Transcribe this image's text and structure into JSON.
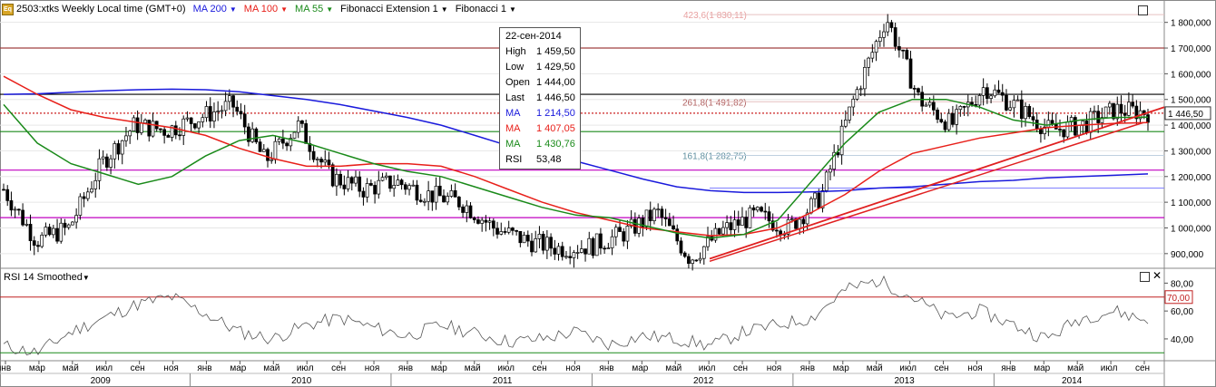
{
  "toolbar": {
    "symbol": "2503:xtks Weekly Local time (GMT+0)",
    "ma200": "MA 200",
    "ma100": "MA 100",
    "ma55": "MA 55",
    "fibext": "Fibonacci Extension 1",
    "fib": "Fibonacci 1",
    "eq_icon": "Eq"
  },
  "colors": {
    "ma200": "#1a1adc",
    "ma100": "#e8201a",
    "ma55": "#1a8a1a",
    "fib_ext": "#cc2222",
    "magenta": "#c000c0",
    "brown": "#a04040"
  },
  "tooltip": {
    "date": "22-сен-2014",
    "high_k": "High",
    "high": "1 459,50",
    "low_k": "Low",
    "low": "1 429,50",
    "open_k": "Open",
    "open": "1 444,00",
    "last_k": "Last",
    "last": "1 446,50",
    "ma1_k": "MA",
    "ma1": "1 214,50",
    "ma2_k": "MA",
    "ma2": "1 407,05",
    "ma3_k": "MA",
    "ma3": "1 430,76",
    "rsi_k": "RSI",
    "rsi": "53,48"
  },
  "fib_labels": {
    "f423": "423,6(1 830,11)",
    "f261": "261,8(1 491,82)",
    "f161": "161,8(1 282,75)"
  },
  "rsi": {
    "title": "RSI 14 Smoothed",
    "level70": "70,00",
    "ticks": [
      "80,00",
      "60,00",
      "40,00"
    ]
  },
  "chart_data": {
    "type": "candlestick",
    "y_ticks": [
      "1 800,000",
      "1 700,000",
      "1 600,000",
      "1 500,000",
      "1 400,000",
      "1 300,000",
      "1 200,000",
      "1 100,000",
      "1 000,000",
      "900,000"
    ],
    "ylim": [
      850,
      1880
    ],
    "last_price": "1 446,50",
    "months": [
      "янв",
      "мар",
      "май",
      "июл",
      "сен",
      "ноя",
      "янв",
      "мар",
      "май",
      "июл",
      "сен",
      "ноя",
      "янв",
      "мар",
      "май",
      "июл",
      "сен",
      "ноя",
      "янв",
      "мар",
      "май",
      "июл",
      "сен",
      "ноя",
      "янв",
      "мар",
      "май",
      "июл",
      "сен",
      "ноя",
      "янв",
      "мар",
      "май",
      "июл",
      "сен"
    ],
    "years": [
      "2009",
      "2010",
      "2011",
      "2012",
      "2013",
      "2014"
    ],
    "horizontal_levels": [
      1700,
      1520,
      1446.5,
      1375,
      1225,
      1040
    ],
    "ma200": [
      1520,
      1522,
      1528,
      1534,
      1538,
      1540,
      1538,
      1530,
      1515,
      1500,
      1480,
      1455,
      1430,
      1400,
      1360,
      1320,
      1290,
      1260,
      1225,
      1190,
      1160,
      1145,
      1138,
      1138,
      1140,
      1145,
      1155,
      1160,
      1170,
      1180,
      1185,
      1195,
      1200,
      1205,
      1210
    ],
    "ma100": [
      1590,
      1520,
      1460,
      1430,
      1410,
      1390,
      1360,
      1310,
      1270,
      1240,
      1240,
      1250,
      1250,
      1240,
      1200,
      1150,
      1100,
      1060,
      1030,
      1000,
      985,
      970,
      975,
      1000,
      1060,
      1130,
      1220,
      1290,
      1320,
      1350,
      1370,
      1390,
      1400,
      1407,
      1410
    ],
    "ma55": [
      1480,
      1330,
      1250,
      1210,
      1170,
      1200,
      1280,
      1340,
      1360,
      1330,
      1290,
      1250,
      1220,
      1200,
      1160,
      1120,
      1080,
      1050,
      1040,
      1010,
      980,
      960,
      975,
      1030,
      1180,
      1330,
      1450,
      1500,
      1500,
      1470,
      1420,
      1400,
      1420,
      1430,
      1431
    ],
    "rsi_values": [
      35,
      30,
      45,
      55,
      65,
      70,
      58,
      45,
      40,
      50,
      55,
      48,
      42,
      50,
      44,
      38,
      40,
      45,
      36,
      42,
      40,
      35,
      45,
      50,
      55,
      75,
      82,
      70,
      55,
      60,
      50,
      40,
      55,
      60,
      53
    ]
  }
}
